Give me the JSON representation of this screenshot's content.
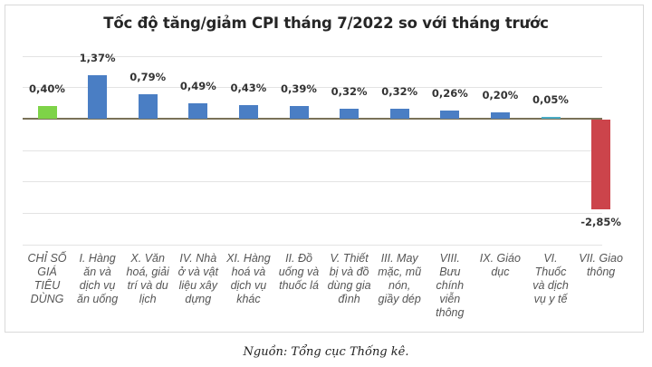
{
  "chart_data": {
    "type": "bar",
    "title": "Tốc độ tăng/giảm CPI tháng 7/2022 so với tháng trước",
    "xlabel": "",
    "ylabel": "",
    "ylim": [
      -4,
      2
    ],
    "grid": true,
    "legend": "none",
    "categories": [
      "CHỈ SỐ GIÁ TIÊU DÙNG",
      "I. Hàng ăn và dịch vụ ăn uống",
      "X. Văn hoá, giải trí và du lịch",
      "IV. Nhà ở và vật liệu xây dựng",
      "XI. Hàng hoá và dịch vụ khác",
      "II. Đồ uống và thuốc lá",
      "V. Thiết bị và đồ dùng gia đình",
      "III. May mặc, mũ nón, giầy dép",
      "VIII. Bưu chính viễn thông",
      "IX. Giáo dục",
      "VI. Thuốc và dịch vụ y tế",
      "VII. Giao thông"
    ],
    "values": [
      0.4,
      1.37,
      0.79,
      0.49,
      0.43,
      0.39,
      0.32,
      0.32,
      0.26,
      0.2,
      0.05,
      -2.85
    ],
    "data_labels": [
      "0,40%",
      "1,37%",
      "0,79%",
      "0,49%",
      "0,43%",
      "0,39%",
      "0,32%",
      "0,32%",
      "0,26%",
      "0,20%",
      "0,05%",
      "-2,85%"
    ],
    "colors": [
      "#7ed348",
      "#4a7ec4",
      "#4a7ec4",
      "#4a7ec4",
      "#4a7ec4",
      "#4a7ec4",
      "#4a7ec4",
      "#4a7ec4",
      "#4a7ec4",
      "#4a7ec4",
      "#4bacc6",
      "#cc444b"
    ]
  },
  "labels": {
    "cat0": [
      "CHỈ SỐ",
      "GIÁ",
      "TIÊU",
      "DÙNG"
    ],
    "cat1": [
      "I. Hàng",
      "ăn và",
      "dịch vụ",
      "ăn uống"
    ],
    "cat2": [
      "X. Văn",
      "hoá, giải",
      "trí và du",
      "lịch"
    ],
    "cat3": [
      "IV. Nhà",
      "ở và vật",
      "liệu xây",
      "dựng"
    ],
    "cat4": [
      "XI. Hàng",
      "hoá và",
      "dịch vụ",
      "khác"
    ],
    "cat5": [
      "II. Đồ",
      "uống và",
      "thuốc lá"
    ],
    "cat6": [
      "V. Thiết",
      "bị và đồ",
      "dùng gia",
      "đình"
    ],
    "cat7": [
      "III. May",
      "mặc, mũ",
      "nón,",
      "giầy dép"
    ],
    "cat8": [
      "VIII.",
      "Bưu",
      "chính",
      "viễn",
      "thông"
    ],
    "cat9": [
      "IX. Giáo",
      "dục"
    ],
    "cat10": [
      "VI.",
      "Thuốc",
      "và dịch",
      "vụ y tế"
    ],
    "cat11": [
      "VII. Giao",
      "thông"
    ]
  },
  "source": "Nguồn: Tổng cục Thống kê."
}
